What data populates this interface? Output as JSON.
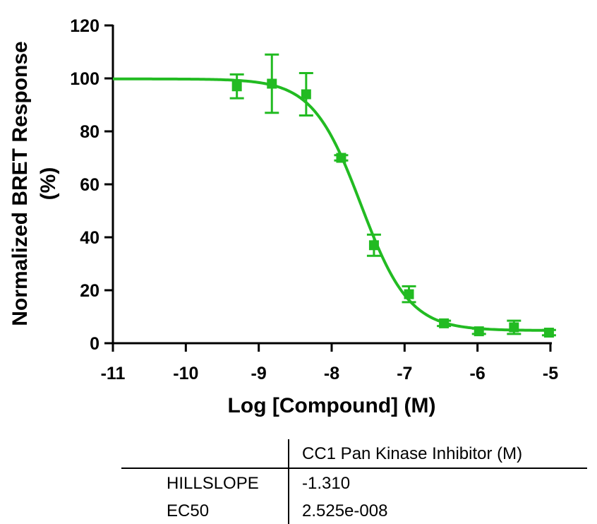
{
  "chart_data": {
    "type": "scatter",
    "ylabel_line1": "Normalized BRET Response",
    "ylabel_line2": "(%)",
    "xlabel": "Log [Compound] (M)",
    "xlim": [
      -11,
      -5
    ],
    "ylim": [
      0,
      120
    ],
    "x_ticks": [
      -11,
      -10,
      -9,
      -8,
      -7,
      -6,
      -5
    ],
    "x_tick_labels": [
      "-11",
      "-10",
      "-9",
      "-8",
      "-7",
      "-6",
      "-5"
    ],
    "y_ticks": [
      0,
      20,
      40,
      60,
      80,
      100,
      120
    ],
    "y_tick_labels": [
      "0",
      "20",
      "40",
      "60",
      "80",
      "100",
      "120"
    ],
    "color": "#22bb22",
    "grid": false,
    "points": [
      {
        "x": -9.3,
        "y": 97,
        "err": 4.5
      },
      {
        "x": -8.82,
        "y": 98,
        "err": 11
      },
      {
        "x": -8.35,
        "y": 94,
        "err": 8
      },
      {
        "x": -7.87,
        "y": 70,
        "err": 1
      },
      {
        "x": -7.42,
        "y": 37,
        "err": 4
      },
      {
        "x": -6.94,
        "y": 18.5,
        "err": 3
      },
      {
        "x": -6.46,
        "y": 7.5,
        "err": 1
      },
      {
        "x": -5.98,
        "y": 4.5,
        "err": 1
      },
      {
        "x": -5.5,
        "y": 6,
        "err": 2.5
      },
      {
        "x": -5.02,
        "y": 4,
        "err": 1
      }
    ],
    "fit": {
      "top": 99.8,
      "bottom": 4.8,
      "log_ec50": -7.598,
      "hill_slope": -1.31
    }
  },
  "table": {
    "column_header": "CC1 Pan Kinase Inhibitor (M)",
    "rows": [
      {
        "label": "HILLSLOPE",
        "value": "-1.310"
      },
      {
        "label": "EC50",
        "value": "2.525e-008"
      }
    ]
  }
}
